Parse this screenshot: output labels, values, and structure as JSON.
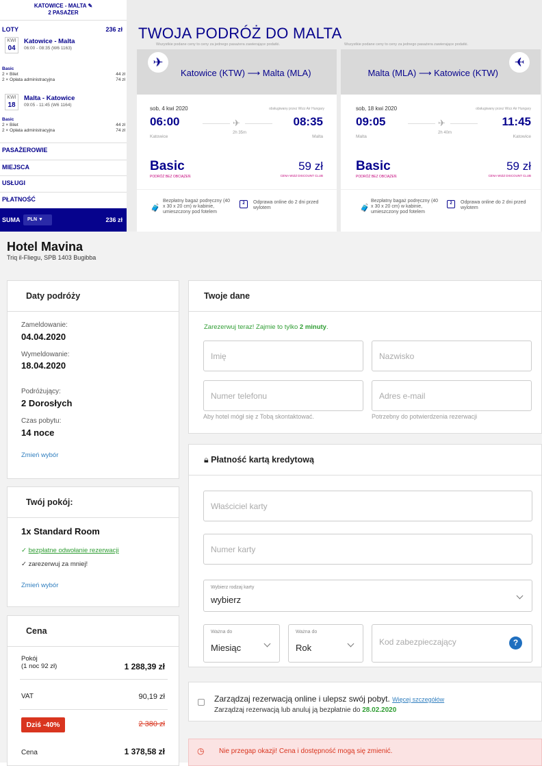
{
  "wizz": {
    "header_route": "KATOWICE - MALTA",
    "header_pax": "2 PASAŻER",
    "loty_label": "LOTY",
    "loty_amount": "236 zł",
    "flights": [
      {
        "month": "KWI",
        "day": "04",
        "route": "Katowice - Malta",
        "time": "06:00 - 08:35 (W6 1163)"
      },
      {
        "month": "KWI",
        "day": "18",
        "route": "Malta - Katowice",
        "time": "09:05 - 11:45 (W6 1164)"
      }
    ],
    "fare_lines": [
      {
        "title": "Basic",
        "l1": "2 × Bilet",
        "l2": "2 × Opłata administracyjna",
        "a1": "44 zł",
        "a2": "74 zł"
      },
      {
        "title": "Basic",
        "l1": "2 × Bilet",
        "l2": "2 × Opłata administracyjna",
        "a1": "44 zł",
        "a2": "74 zł"
      }
    ],
    "accordion": [
      "PASAŻEROWIE",
      "MIEJSCA",
      "USŁUGI",
      "PŁATNOŚĆ"
    ],
    "suma_label": "SUMA",
    "currency": "PLN ▼",
    "suma_amount": "236 zł",
    "title": "TWOJA PODRÓŻ DO MALTA",
    "price_note": "Wszystkie podane ceny to ceny za jednego pasażera zawierające podatki.",
    "cards": [
      {
        "route": "Katowice (KTW) ⟶ Malta (MLA)",
        "date": "sob, 4 kwi 2020",
        "operator": "obsługiwany przez Wizz Air Hungary",
        "dep": "06:00",
        "arr": "08:35",
        "duration": "2h 35m",
        "from": "Katowice",
        "to": "Malta",
        "fare": "Basic",
        "fare_sub": "PODRÓŻ BEZ OBCIĄŻEŃ",
        "price": "59 zł",
        "club": "CENA WIZZ DISCOUNT CLUB",
        "bag": "Bezpłatny bagaż podręczny (40 x 30 x 20 cm) w kabinie, umieszczony pod fotelem",
        "checkin": "Odprawa online do 2 dni przed wylotem",
        "cal_num": "2"
      },
      {
        "route": "Malta (MLA) ⟶ Katowice (KTW)",
        "date": "sob, 18 kwi 2020",
        "operator": "obsługiwany przez Wizz Air Hungary",
        "dep": "09:05",
        "arr": "11:45",
        "duration": "2h 40m",
        "from": "Malta",
        "to": "Katowice",
        "fare": "Basic",
        "fare_sub": "PODRÓŻ BEZ OBCIĄŻEŃ",
        "price": "59 zł",
        "club": "CENA WIZZ DISCOUNT CLUB",
        "bag": "Bezpłatny bagaż podręczny (40 x 30 x 20 cm) w kabinie, umieszczony pod fotelem",
        "checkin": "Odprawa online do 2 dni przed wylotem",
        "cal_num": "2"
      }
    ]
  },
  "hotel": {
    "name": "Hotel Mavina",
    "address": "Triq il-Fliegu, SPB 1403 Bugibba",
    "dates": {
      "title": "Daty podróży",
      "checkin_label": "Zameldowanie:",
      "checkin": "04.04.2020",
      "checkout_label": "Wymeldowanie:",
      "checkout": "18.04.2020",
      "travellers_label": "Podróżujący:",
      "travellers": "2 Dorosłych",
      "stay_label": "Czas pobytu:",
      "stay": "14 noce",
      "change": "Zmień wybór"
    },
    "room": {
      "title": "Twój pokój:",
      "name": "1x Standard Room",
      "perk1": "bezpłatne odwołanie rezerwacji",
      "perk2": "zarezerwuj za mniej!",
      "change": "Zmień wybór"
    },
    "price": {
      "title": "Cena",
      "room_label": "Pokój",
      "room_sub": "(1 noc 92 zł)",
      "room_value": "1 288,39 zł",
      "vat_label": "VAT",
      "vat_value": "90,19 zł",
      "discount_badge": "Dziś -40%",
      "old_price": "2 380 zł",
      "total_label": "Cena",
      "total_value": "1 378,58 zł"
    },
    "form": {
      "title": "Twoje dane",
      "promo_prefix": "Zarezerwuj teraz! Zajmie to tylko ",
      "promo_bold": "2 minuty",
      "promo_suffix": ".",
      "first_name": "Imię",
      "last_name": "Nazwisko",
      "phone": "Numer telefonu",
      "email": "Adres e-mail",
      "phone_hint": "Aby hotel mógł się z Tobą skontaktować.",
      "email_hint": "Potrzebny do potwierdzenia rezerwacji"
    },
    "payment": {
      "title": "Płatność kartą kredytową",
      "holder": "Właściciel karty",
      "number": "Numer karty",
      "card_type_label": "Wybierz rodzaj karty",
      "card_type_value": "wybierz",
      "month_label": "Ważna do",
      "month_value": "Miesiąc",
      "year_label": "Ważna do",
      "year_value": "Rok",
      "cvv": "Kod zabezpieczający",
      "help": "?"
    },
    "manage": {
      "text": "Zarządzaj rezerwacją online i ulepsz swój pobyt.",
      "more": "Więcej szczegółów",
      "sub": "Zarządzaj rezerwacją lub anuluj ją bezpłatnie do ",
      "sub_date": "28.02.2020"
    },
    "alert": "Nie przegap okazji! Cena i dostępność mogą się zmienić."
  }
}
